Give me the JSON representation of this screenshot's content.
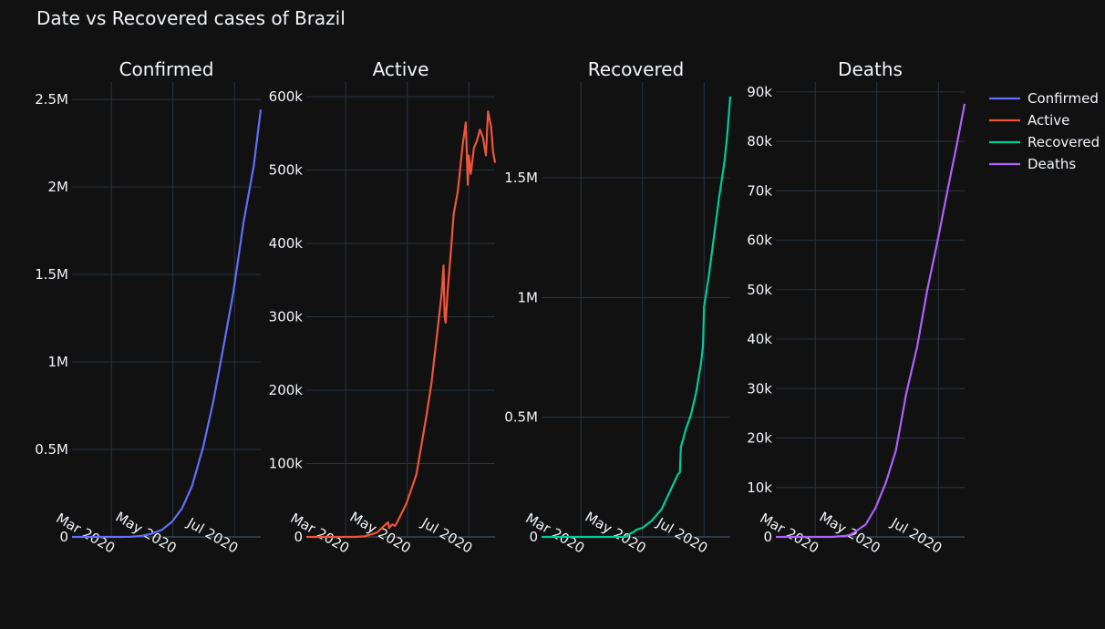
{
  "title": "Date vs Recovered cases of Brazil",
  "chart_data": {
    "type": "line",
    "x_ticks": [
      "Mar 2020",
      "May 2020",
      "Jul 2020"
    ],
    "x_tick_dates": [
      "2020-03-01",
      "2020-05-01",
      "2020-07-01"
    ],
    "x_range": [
      "2020-01-22",
      "2020-07-27"
    ],
    "legend": {
      "placement": "top-right"
    },
    "colors": {
      "Confirmed": "#636efa",
      "Active": "#ef553b",
      "Recovered": "#00cc96",
      "Deaths": "#ab63fa"
    },
    "panels": [
      {
        "name": "Confirmed",
        "title": "Confirmed",
        "ylim": [
          0,
          2600000
        ],
        "y_ticks": [
          0,
          500000,
          1000000,
          1500000,
          2000000,
          2500000
        ],
        "y_tick_labels": [
          "0",
          "0.5M",
          "1M",
          "1.5M",
          "2M",
          "2.5M"
        ],
        "points": [
          [
            "2020-01-22",
            0
          ],
          [
            "2020-02-26",
            1
          ],
          [
            "2020-03-10",
            30
          ],
          [
            "2020-03-20",
            900
          ],
          [
            "2020-04-01",
            6800
          ],
          [
            "2020-04-10",
            19000
          ],
          [
            "2020-04-20",
            40000
          ],
          [
            "2020-04-30",
            86000
          ],
          [
            "2020-05-10",
            163000
          ],
          [
            "2020-05-20",
            292000
          ],
          [
            "2020-05-31",
            515000
          ],
          [
            "2020-06-10",
            775000
          ],
          [
            "2020-06-20",
            1084000
          ],
          [
            "2020-06-30",
            1403000
          ],
          [
            "2020-07-10",
            1800000
          ],
          [
            "2020-07-20",
            2120000
          ],
          [
            "2020-07-27",
            2442000
          ]
        ]
      },
      {
        "name": "Active",
        "title": "Active",
        "ylim": [
          0,
          620000
        ],
        "y_ticks": [
          0,
          100000,
          200000,
          300000,
          400000,
          500000,
          600000
        ],
        "y_tick_labels": [
          "0",
          "100k",
          "200k",
          "300k",
          "400k",
          "500k",
          "600k"
        ],
        "points": [
          [
            "2020-01-22",
            0
          ],
          [
            "2020-03-10",
            30
          ],
          [
            "2020-03-20",
            900
          ],
          [
            "2020-04-01",
            6000
          ],
          [
            "2020-04-08",
            15000
          ],
          [
            "2020-04-12",
            20000
          ],
          [
            "2020-04-13",
            12000
          ],
          [
            "2020-04-16",
            17000
          ],
          [
            "2020-04-19",
            15000
          ],
          [
            "2020-04-21",
            20000
          ],
          [
            "2020-04-30",
            45000
          ],
          [
            "2020-05-10",
            85000
          ],
          [
            "2020-05-15",
            125000
          ],
          [
            "2020-05-20",
            165000
          ],
          [
            "2020-05-25",
            210000
          ],
          [
            "2020-05-30",
            270000
          ],
          [
            "2020-06-04",
            330000
          ],
          [
            "2020-06-06",
            370000
          ],
          [
            "2020-06-07",
            300000
          ],
          [
            "2020-06-08",
            292000
          ],
          [
            "2020-06-10",
            335000
          ],
          [
            "2020-06-13",
            385000
          ],
          [
            "2020-06-16",
            440000
          ],
          [
            "2020-06-20",
            470000
          ],
          [
            "2020-06-25",
            535000
          ],
          [
            "2020-06-28",
            565000
          ],
          [
            "2020-06-30",
            480000
          ],
          [
            "2020-07-01",
            520000
          ],
          [
            "2020-07-03",
            495000
          ],
          [
            "2020-07-06",
            530000
          ],
          [
            "2020-07-09",
            540000
          ],
          [
            "2020-07-12",
            555000
          ],
          [
            "2020-07-15",
            545000
          ],
          [
            "2020-07-18",
            520000
          ],
          [
            "2020-07-20",
            580000
          ],
          [
            "2020-07-23",
            560000
          ],
          [
            "2020-07-25",
            525000
          ],
          [
            "2020-07-27",
            510000
          ]
        ]
      },
      {
        "name": "Recovered",
        "title": "Recovered",
        "ylim": [
          0,
          1900000
        ],
        "y_ticks": [
          0,
          500000,
          1000000,
          1500000
        ],
        "y_tick_labels": [
          "0",
          "0.5M",
          "1M",
          "1.5M"
        ],
        "points": [
          [
            "2020-01-22",
            0
          ],
          [
            "2020-03-20",
            2
          ],
          [
            "2020-04-15",
            200
          ],
          [
            "2020-04-19",
            14000
          ],
          [
            "2020-04-22",
            20000
          ],
          [
            "2020-04-25",
            30000
          ],
          [
            "2020-05-01",
            38000
          ],
          [
            "2020-05-10",
            67000
          ],
          [
            "2020-05-20",
            116000
          ],
          [
            "2020-05-30",
            206000
          ],
          [
            "2020-06-05",
            260000
          ],
          [
            "2020-06-07",
            270000
          ],
          [
            "2020-06-08",
            375000
          ],
          [
            "2020-06-13",
            450000
          ],
          [
            "2020-06-18",
            510000
          ],
          [
            "2020-06-23",
            600000
          ],
          [
            "2020-06-28",
            725000
          ],
          [
            "2020-06-30",
            800000
          ],
          [
            "2020-07-01",
            960000
          ],
          [
            "2020-07-06",
            1100000
          ],
          [
            "2020-07-11",
            1260000
          ],
          [
            "2020-07-16",
            1420000
          ],
          [
            "2020-07-21",
            1560000
          ],
          [
            "2020-07-24",
            1680000
          ],
          [
            "2020-07-27",
            1840000
          ]
        ]
      },
      {
        "name": "Deaths",
        "title": "Deaths",
        "ylim": [
          0,
          92000
        ],
        "y_ticks": [
          0,
          10000,
          20000,
          30000,
          40000,
          50000,
          60000,
          70000,
          80000,
          90000
        ],
        "y_tick_labels": [
          "0",
          "10k",
          "20k",
          "30k",
          "40k",
          "50k",
          "60k",
          "70k",
          "80k",
          "90k"
        ],
        "points": [
          [
            "2020-01-22",
            0
          ],
          [
            "2020-03-17",
            1
          ],
          [
            "2020-03-31",
            200
          ],
          [
            "2020-04-05",
            480
          ],
          [
            "2020-04-10",
            1100
          ],
          [
            "2020-04-20",
            2500
          ],
          [
            "2020-04-30",
            6000
          ],
          [
            "2020-05-10",
            11000
          ],
          [
            "2020-05-20",
            17500
          ],
          [
            "2020-05-30",
            28800
          ],
          [
            "2020-06-10",
            38500
          ],
          [
            "2020-06-20",
            49900
          ],
          [
            "2020-06-30",
            59600
          ],
          [
            "2020-07-10",
            70000
          ],
          [
            "2020-07-20",
            80100
          ],
          [
            "2020-07-27",
            87600
          ]
        ]
      }
    ]
  }
}
